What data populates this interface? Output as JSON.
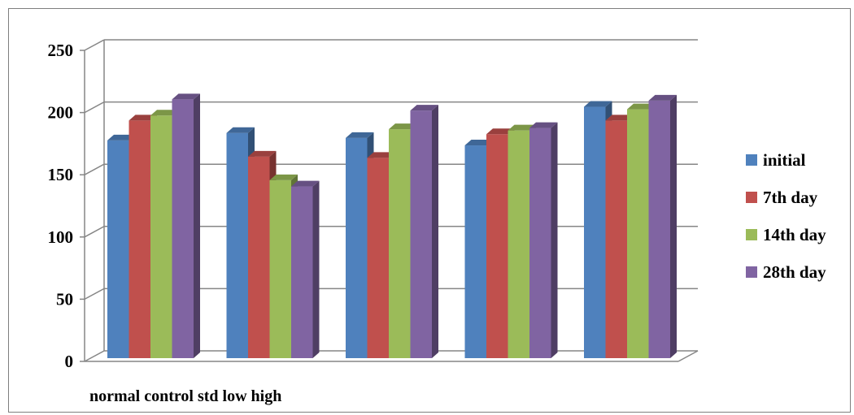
{
  "chart_data": {
    "type": "bar",
    "bar_style": "3d-clustered",
    "category_axis_label": "normal control std low high",
    "groups": 5,
    "series": [
      {
        "name": "initial",
        "color": "#4f81bd",
        "values": [
          175,
          181,
          177,
          171,
          202
        ]
      },
      {
        "name": "7th day",
        "color": "#c0504d",
        "values": [
          191,
          162,
          161,
          180,
          191
        ]
      },
      {
        "name": "14th day",
        "color": "#9bbb59",
        "values": [
          195,
          143,
          184,
          183,
          200
        ]
      },
      {
        "name": "28th day",
        "color": "#8064a2",
        "values": [
          208,
          138,
          199,
          185,
          207
        ]
      }
    ],
    "yticks": [
      "0",
      "50",
      "100",
      "150",
      "200",
      "250"
    ],
    "ylim": [
      0,
      250
    ],
    "grid": true,
    "legend_position": "right"
  }
}
